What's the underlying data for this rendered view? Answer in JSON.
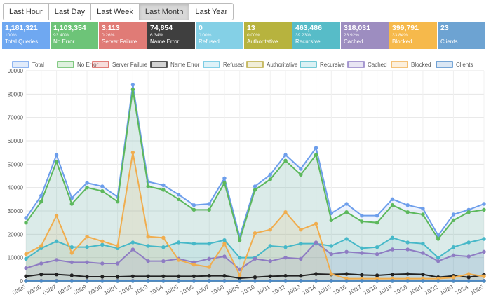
{
  "tabs": [
    {
      "label": "Last Hour",
      "active": false
    },
    {
      "label": "Last Day",
      "active": false
    },
    {
      "label": "Last Week",
      "active": false
    },
    {
      "label": "Last Month",
      "active": true
    },
    {
      "label": "Last Year",
      "active": false
    }
  ],
  "stats": [
    {
      "value": "1,181,321",
      "percent": "100%",
      "label": "Total Queries",
      "color": "#6fa8f1"
    },
    {
      "value": "1,103,354",
      "percent": "93.40%",
      "label": "No Error",
      "color": "#6dc478"
    },
    {
      "value": "3,113",
      "percent": "0.26%",
      "label": "Server Failure",
      "color": "#e07b76"
    },
    {
      "value": "74,854",
      "percent": "6.34%",
      "label": "Name Error",
      "color": "#3f3f3f"
    },
    {
      "value": "0",
      "percent": "0.00%",
      "label": "Refused",
      "color": "#84d0e6"
    },
    {
      "value": "13",
      "percent": "0.00%",
      "label": "Authoritative",
      "color": "#b7b33e"
    },
    {
      "value": "463,486",
      "percent": "39.23%",
      "label": "Recursive",
      "color": "#57bcc8"
    },
    {
      "value": "318,031",
      "percent": "26.92%",
      "label": "Cached",
      "color": "#9d8dc0"
    },
    {
      "value": "399,791",
      "percent": "33.84%",
      "label": "Blocked",
      "color": "#f6b94b"
    },
    {
      "value": "23",
      "percent": "",
      "label": "Clients",
      "color": "#6da3d2"
    }
  ],
  "chart_data": {
    "type": "line",
    "ylim": [
      0,
      90000
    ],
    "yticks": [
      0,
      10000,
      20000,
      30000,
      40000,
      50000,
      60000,
      70000,
      80000,
      90000
    ],
    "grid": true,
    "legend_position": "top",
    "categories": [
      "09/25",
      "09/26",
      "09/27",
      "09/28",
      "09/29",
      "09/30",
      "10/01",
      "10/02",
      "10/03",
      "10/04",
      "10/05",
      "10/06",
      "10/07",
      "10/08",
      "10/09",
      "10/10",
      "10/11",
      "10/12",
      "10/13",
      "10/14",
      "10/15",
      "10/16",
      "10/17",
      "10/18",
      "10/19",
      "10/20",
      "10/21",
      "10/22",
      "10/23",
      "10/24",
      "10/25"
    ],
    "series": [
      {
        "name": "Total",
        "color": "#6d9eeb",
        "fill": true,
        "values": [
          27000,
          36500,
          54000,
          35500,
          42000,
          40500,
          36000,
          84000,
          42500,
          41000,
          37000,
          32500,
          33000,
          44000,
          19000,
          40500,
          45500,
          54000,
          48000,
          57000,
          29000,
          33000,
          28000,
          28000,
          35000,
          32500,
          31000,
          19500,
          28500,
          30500,
          33000
        ]
      },
      {
        "name": "No Error",
        "color": "#5cb85c",
        "fill": true,
        "values": [
          25000,
          34000,
          51000,
          33000,
          40000,
          38500,
          34000,
          82000,
          40500,
          39000,
          35000,
          30500,
          30500,
          42000,
          17500,
          39000,
          43500,
          51500,
          45500,
          54000,
          26000,
          29500,
          25500,
          25000,
          32500,
          29500,
          28500,
          18000,
          26000,
          29500,
          30500
        ]
      },
      {
        "name": "Server Failure",
        "color": "#d9534f",
        "fill": false,
        "values": [
          100,
          100,
          100,
          100,
          100,
          100,
          100,
          100,
          100,
          100,
          100,
          100,
          100,
          100,
          100,
          100,
          100,
          100,
          100,
          100,
          100,
          100,
          100,
          100,
          100,
          100,
          100,
          100,
          100,
          100,
          100
        ]
      },
      {
        "name": "Name Error",
        "color": "#222222",
        "fill": false,
        "values": [
          2000,
          2800,
          2800,
          2400,
          1800,
          1800,
          1800,
          2000,
          2000,
          2000,
          2000,
          2000,
          2200,
          2200,
          1200,
          1600,
          2000,
          2200,
          2200,
          3000,
          2800,
          3000,
          2600,
          2400,
          2800,
          3000,
          2800,
          1600,
          2200,
          1600,
          2600
        ]
      },
      {
        "name": "Refused",
        "color": "#5bc0de",
        "fill": true,
        "values": [
          0,
          0,
          0,
          0,
          0,
          0,
          0,
          0,
          0,
          0,
          0,
          0,
          0,
          0,
          0,
          0,
          0,
          0,
          0,
          0,
          0,
          0,
          0,
          0,
          0,
          0,
          0,
          0,
          0,
          0,
          0
        ]
      },
      {
        "name": "Authoritative",
        "color": "#b8a93d",
        "fill": true,
        "values": [
          0,
          0,
          0,
          0,
          0,
          0,
          0,
          0,
          0,
          0,
          0,
          0,
          0,
          0,
          0,
          0,
          0,
          0,
          0,
          0,
          0,
          0,
          0,
          0,
          0,
          0,
          0,
          0,
          0,
          0,
          0
        ]
      },
      {
        "name": "Recursive",
        "color": "#46b8c8",
        "fill": true,
        "values": [
          9500,
          14000,
          17000,
          14500,
          14500,
          15500,
          14000,
          16500,
          15000,
          14500,
          16500,
          16000,
          16000,
          17500,
          10000,
          10000,
          15000,
          14500,
          16000,
          16000,
          15000,
          18000,
          14000,
          14500,
          18500,
          16500,
          16000,
          10000,
          14500,
          16500,
          18000
        ]
      },
      {
        "name": "Cached",
        "color": "#8e7cc3",
        "fill": true,
        "values": [
          5500,
          7500,
          9000,
          8000,
          8000,
          7500,
          7500,
          13500,
          8500,
          8500,
          9500,
          8000,
          9500,
          10500,
          5000,
          9500,
          8500,
          10000,
          9500,
          16500,
          11500,
          12500,
          12000,
          11500,
          13500,
          13500,
          12000,
          8500,
          11000,
          10500,
          12500
        ]
      },
      {
        "name": "Blocked",
        "color": "#f0ad4e",
        "fill": true,
        "values": [
          11500,
          15000,
          28000,
          12000,
          19000,
          17000,
          15000,
          55000,
          19000,
          18500,
          9000,
          7000,
          6000,
          16000,
          2500,
          20500,
          22000,
          29500,
          22000,
          24500,
          3000,
          1000,
          1000,
          1000,
          1000,
          1000,
          1000,
          1000,
          1500,
          3000,
          2000
        ]
      },
      {
        "name": "Clients",
        "color": "#4a89c9",
        "fill": true,
        "values": [
          20,
          20,
          20,
          20,
          20,
          20,
          20,
          20,
          20,
          20,
          20,
          20,
          20,
          20,
          20,
          20,
          20,
          20,
          20,
          20,
          20,
          20,
          20,
          20,
          20,
          20,
          20,
          20,
          20,
          20,
          20
        ]
      }
    ]
  }
}
